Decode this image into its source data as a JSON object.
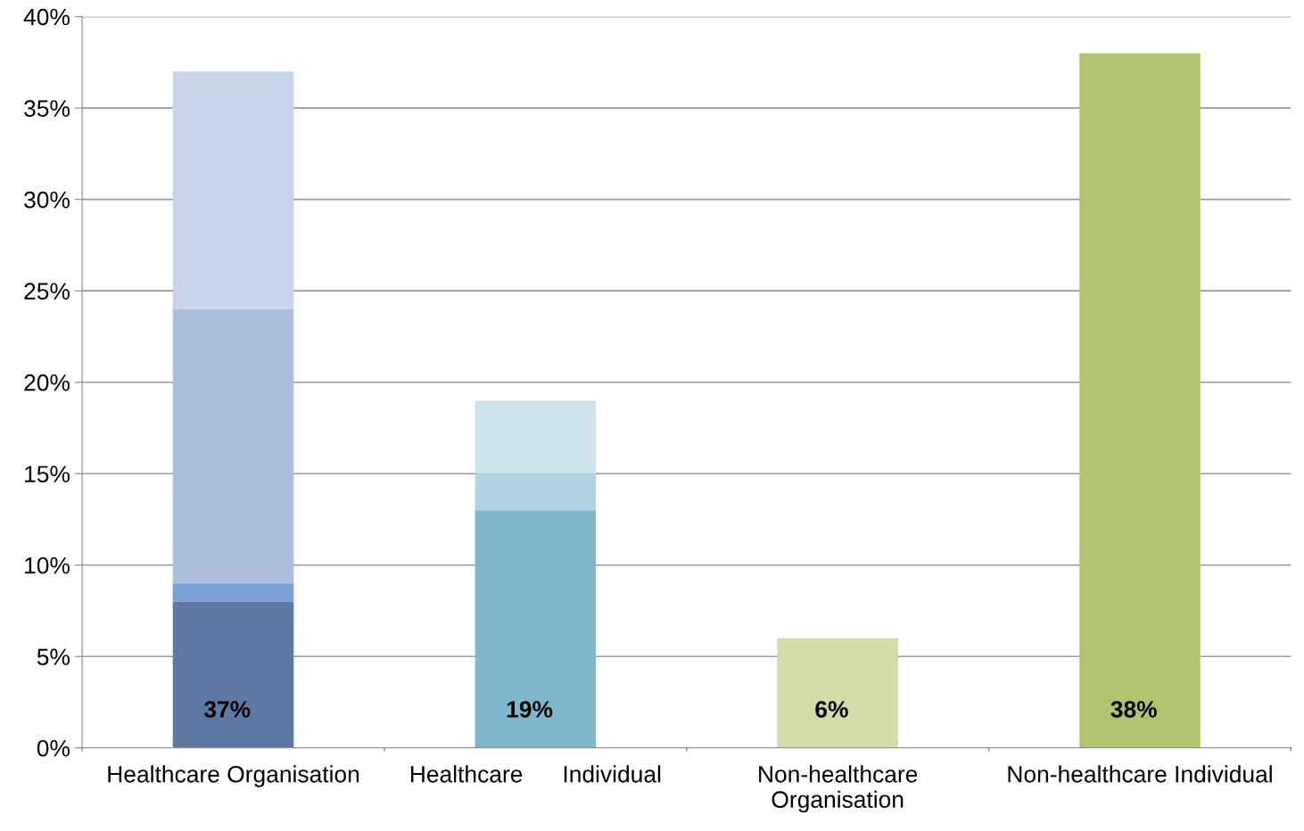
{
  "chart_data": {
    "type": "bar",
    "stacked": true,
    "categories": [
      "Healthcare Organisation",
      "Healthcare      Individual",
      "Non-healthcare\nOrganisation",
      "Non-healthcare Individual"
    ],
    "series": [
      {
        "colors": [
          "#5e79a1",
          "#7fb7cd",
          "#d3dca9",
          "#b0c46f"
        ],
        "values": [
          8,
          13,
          6,
          38
        ]
      },
      {
        "colors": [
          "#7aa0d8",
          "#b1d5e0",
          null,
          null
        ],
        "values": [
          1,
          2,
          null,
          null
        ]
      },
      {
        "colors": [
          "#abbfdd",
          "#cce3eb",
          null,
          null
        ],
        "values": [
          15,
          4,
          null,
          null
        ]
      },
      {
        "colors": [
          "#c8d5e8",
          null,
          null,
          null
        ],
        "values": [
          13,
          null,
          null,
          null
        ]
      }
    ],
    "totals": [
      "37%",
      "19%",
      "6%",
      "38%"
    ],
    "ylim": [
      0,
      40
    ],
    "yticks": [
      {
        "value": 0,
        "label": "0%"
      },
      {
        "value": 5,
        "label": "5%"
      },
      {
        "value": 10,
        "label": "10%"
      },
      {
        "value": 15,
        "label": "15%"
      },
      {
        "value": 20,
        "label": "20%"
      },
      {
        "value": 25,
        "label": "25%"
      },
      {
        "value": 30,
        "label": "30%"
      },
      {
        "value": 35,
        "label": "35%"
      },
      {
        "value": 40,
        "label": "40%"
      }
    ],
    "grid": "y"
  }
}
